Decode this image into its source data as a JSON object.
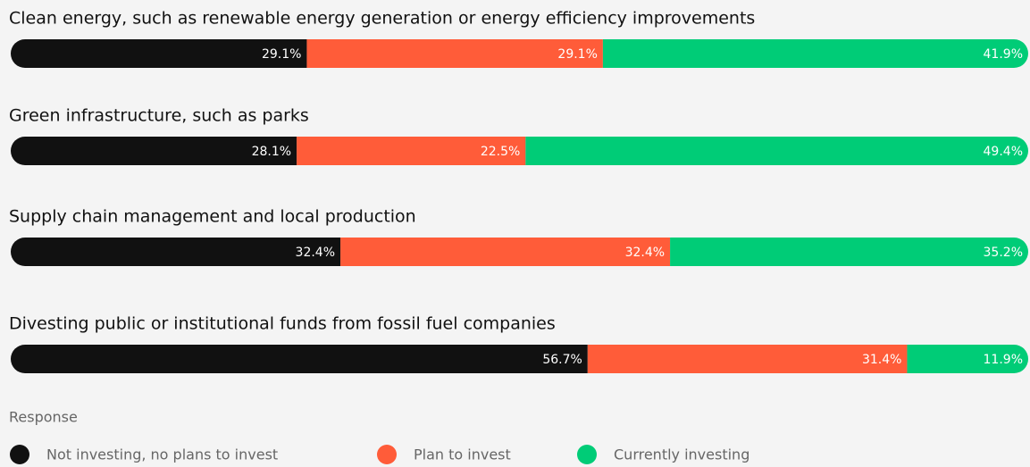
{
  "chart_data": {
    "type": "stacked-bar-horizontal",
    "categories": [
      "Clean energy, such as renewable energy generation or energy efficiency improvements",
      "Green infrastructure, such as parks",
      "Supply chain management and local production",
      "Divesting public or institutional funds from fossil fuel companies"
    ],
    "xlim": [
      0,
      100
    ],
    "legend_title": "Response",
    "series": [
      {
        "name": "Not investing, no plans to invest",
        "color": "#111111",
        "values": [
          29.1,
          28.1,
          32.4,
          56.7
        ],
        "value_labels": [
          "29.1%",
          "28.1%",
          "32.4%",
          "56.7%"
        ]
      },
      {
        "name": "Plan to invest",
        "color": "#ff5c39",
        "values": [
          29.1,
          22.5,
          32.4,
          31.4
        ],
        "value_labels": [
          "29.1%",
          "22.5%",
          "32.4%",
          "31.4%"
        ]
      },
      {
        "name": "Currently investing",
        "color": "#00cc77",
        "values": [
          41.9,
          49.4,
          35.2,
          11.9
        ],
        "value_labels": [
          "41.9%",
          "49.4%",
          "35.2%",
          "11.9%"
        ]
      }
    ]
  }
}
